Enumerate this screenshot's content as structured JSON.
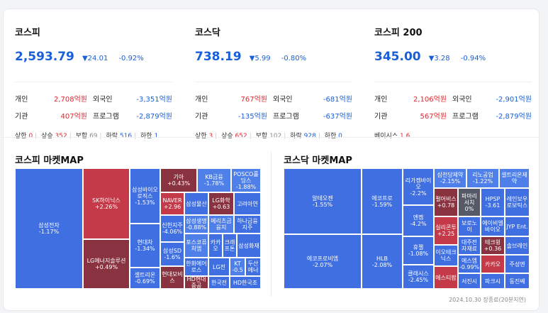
{
  "indices": [
    {
      "name": "코스피",
      "value": "2,593.79",
      "change": "▼24.01",
      "pct": "-0.92%",
      "flows": [
        {
          "label": "개인",
          "value": "2,708억원",
          "dir": "up"
        },
        {
          "label": "외국인",
          "value": "-3,351억원",
          "dir": "down"
        },
        {
          "label": "기관",
          "value": "407억원",
          "dir": "up"
        },
        {
          "label": "프로그램",
          "value": "-2,879억원",
          "dir": "down"
        }
      ],
      "stats": {
        "upper_label": "상한",
        "upper": "0",
        "up_label": "상승",
        "up": "352",
        "flat_label": "보합",
        "flat": "69",
        "down_label": "하락",
        "down": "516",
        "lower_label": "하한",
        "lower": "1"
      }
    },
    {
      "name": "코스닥",
      "value": "738.19",
      "change": "▼5.99",
      "pct": "-0.80%",
      "flows": [
        {
          "label": "개인",
          "value": "767억원",
          "dir": "up"
        },
        {
          "label": "외국인",
          "value": "-681억원",
          "dir": "down"
        },
        {
          "label": "기관",
          "value": "-135억원",
          "dir": "down"
        },
        {
          "label": "프로그램",
          "value": "-637억원",
          "dir": "down"
        }
      ],
      "stats": {
        "upper_label": "상한",
        "upper": "3",
        "up_label": "상승",
        "up": "652",
        "flat_label": "보합",
        "flat": "102",
        "down_label": "하락",
        "down": "928",
        "lower_label": "하한",
        "lower": "0"
      }
    },
    {
      "name": "코스피 200",
      "value": "345.00",
      "change": "▼3.28",
      "pct": "-0.94%",
      "flows": [
        {
          "label": "개인",
          "value": "2,106억원",
          "dir": "up"
        },
        {
          "label": "외국인",
          "value": "-2,901억원",
          "dir": "down"
        },
        {
          "label": "기관",
          "value": "567억원",
          "dir": "up"
        },
        {
          "label": "프로그램",
          "value": "-2,879억원",
          "dir": "down"
        }
      ],
      "basis_label": "베이시스",
      "basis": "1.6"
    }
  ],
  "kospi_map": {
    "title": "코스피 마켓MAP",
    "tiles": [
      {
        "name": "삼성전자",
        "chg": "-1.17%"
      },
      {
        "name": "SK하이닉스",
        "chg": "+2.26%"
      },
      {
        "name": "LG에너지솔루션",
        "chg": "+0.49%"
      },
      {
        "name": "삼성바이오로직스",
        "chg": "-1.53%"
      },
      {
        "name": "현대차",
        "chg": "-1.34%"
      },
      {
        "name": "셀트리온",
        "chg": "-0.69%"
      },
      {
        "name": "기아",
        "chg": "+0.43%"
      },
      {
        "name": "KB금융",
        "chg": "-1.78%"
      },
      {
        "name": "POSCO홀딩스",
        "chg": "-1.88%"
      },
      {
        "name": "NAVER",
        "chg": "+2.96"
      },
      {
        "name": "삼성물산",
        "chg": ""
      },
      {
        "name": "LG화학",
        "chg": "+0.63"
      },
      {
        "name": "고려아연",
        "chg": ""
      },
      {
        "name": "신한지주",
        "chg": "-4.06%"
      },
      {
        "name": "삼성생명",
        "chg": "-0.88%"
      },
      {
        "name": "메리츠금융지",
        "chg": ""
      },
      {
        "name": "하나금융지주",
        "chg": ""
      },
      {
        "name": "포스코퓨처엠",
        "chg": ""
      },
      {
        "name": "카카오",
        "chg": ""
      },
      {
        "name": "크래프톤",
        "chg": ""
      },
      {
        "name": "삼성화재",
        "chg": ""
      },
      {
        "name": "삼성SD",
        "chg": "-1.6%"
      },
      {
        "name": "한화에어로스",
        "chg": ""
      },
      {
        "name": "KT",
        "chg": "-0.5"
      },
      {
        "name": "두산에너",
        "chg": ""
      },
      {
        "name": "LG전",
        "chg": ""
      },
      {
        "name": "현대모비스",
        "chg": ""
      },
      {
        "name": "HD현대중공",
        "chg": ""
      },
      {
        "name": "한국전",
        "chg": ""
      },
      {
        "name": "HD한국조",
        "chg": ""
      }
    ]
  },
  "kosdaq_map": {
    "title": "코스닥 마켓MAP",
    "tiles": [
      {
        "name": "알테오젠",
        "chg": "-1.55%"
      },
      {
        "name": "에코프로비엠",
        "chg": "-2.07%"
      },
      {
        "name": "에코프로",
        "chg": "-1.59%"
      },
      {
        "name": "HLB",
        "chg": "-2.08%"
      },
      {
        "name": "리가켐바이오",
        "chg": "-2.2%"
      },
      {
        "name": "엔켐",
        "chg": "-4.2%"
      },
      {
        "name": "휴젤",
        "chg": "-1.08%"
      },
      {
        "name": "클래시스",
        "chg": "-2.45%"
      },
      {
        "name": "삼천당제약",
        "chg": "-2.15%"
      },
      {
        "name": "리노공업",
        "chg": "-1.22%"
      },
      {
        "name": "셀트리온제약",
        "chg": ""
      },
      {
        "name": "펄어비스",
        "chg": "+0.78"
      },
      {
        "name": "파마리서치",
        "chg": "0%"
      },
      {
        "name": "HPSP",
        "chg": "-3.61"
      },
      {
        "name": "레인보우로보틱스",
        "chg": ""
      },
      {
        "name": "실리콘투",
        "chg": "+2.25"
      },
      {
        "name": "보로노이",
        "chg": ""
      },
      {
        "name": "에이비엘바이오",
        "chg": ""
      },
      {
        "name": "JYP Ent.",
        "chg": ""
      },
      {
        "name": "이오테크닉스",
        "chg": ""
      },
      {
        "name": "대주전자재료",
        "chg": ""
      },
      {
        "name": "테크윙",
        "chg": "+0.36"
      },
      {
        "name": "솔브레인",
        "chg": ""
      },
      {
        "name": "에스엠",
        "chg": "-0.99%"
      },
      {
        "name": "카카오",
        "chg": ""
      },
      {
        "name": "주성엔",
        "chg": ""
      },
      {
        "name": "에스티팜",
        "chg": ""
      },
      {
        "name": "서진시",
        "chg": ""
      },
      {
        "name": "파크시",
        "chg": ""
      },
      {
        "name": "동진쎄",
        "chg": ""
      }
    ]
  },
  "footer": "2024.10.30 장종료(20분지연)"
}
